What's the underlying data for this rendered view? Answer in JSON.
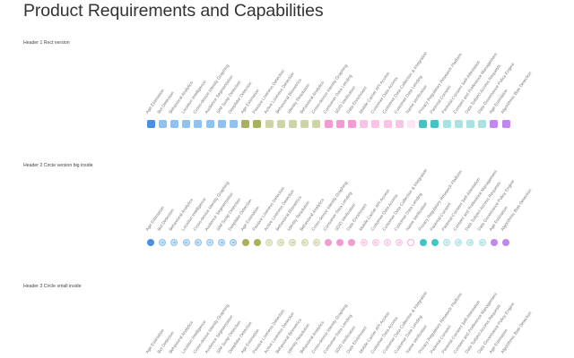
{
  "page": {
    "title": "Product Requirements and Capabilities",
    "headers": [
      "Header 1 Rect version",
      "Header 2 Circle version big inside",
      "Header 3 Circle small inside"
    ]
  },
  "capabilities": [
    {
      "label": "Age Estimation",
      "color": "#4a90e2",
      "style": "filled"
    },
    {
      "label": "Bot Detection",
      "color": "#8fc2ee",
      "style": "ring"
    },
    {
      "label": "Behavioral Analytics",
      "color": "#8fc2ee",
      "style": "ring"
    },
    {
      "label": "Location Intelligence",
      "color": "#8fc2ee",
      "style": "ring"
    },
    {
      "label": "Cross-device Identity Graphing",
      "color": "#8fc2ee",
      "style": "ring"
    },
    {
      "label": "Audience Segmentation",
      "color": "#8fc2ee",
      "style": "ring"
    },
    {
      "label": "SIM Swap Detection",
      "color": "#8fc2ee",
      "style": "ring"
    },
    {
      "label": "Deepfake Detection",
      "color": "#8fc2ee",
      "style": "ring"
    },
    {
      "label": "Age Estimation",
      "color": "#a9b15c",
      "style": "filled"
    },
    {
      "label": "Passive Liveness Detection",
      "color": "#a9b15c",
      "style": "filled"
    },
    {
      "label": "Active Liveness Detection",
      "color": "#cfd4a8",
      "style": "ring"
    },
    {
      "label": "Behavioral Biometrics",
      "color": "#cfd4a8",
      "style": "ring"
    },
    {
      "label": "Identity Resolution",
      "color": "#cfd4a8",
      "style": "ring"
    },
    {
      "label": "Behavioral Analytics",
      "color": "#cfd4a8",
      "style": "ring"
    },
    {
      "label": "Cross-device Identity Graphing",
      "color": "#cfd4a8",
      "style": "ring"
    },
    {
      "label": "Consumer Data Lending",
      "color": "#f39bd0",
      "style": "filled"
    },
    {
      "label": "SDID Verification",
      "color": "#f39bd0",
      "style": "filled"
    },
    {
      "label": "Data Enrichment",
      "color": "#f39bd0",
      "style": "filled"
    },
    {
      "label": "Mobile Carrier API Access",
      "color": "#f7c5e3",
      "style": "ring"
    },
    {
      "label": "Customer Data Access",
      "color": "#f7c5e3",
      "style": "ring"
    },
    {
      "label": "Customer Data Collection & Integration",
      "color": "#f7c5e3",
      "style": "ring"
    },
    {
      "label": "Customer Data Lending",
      "color": "#f7c5e3",
      "style": "ring"
    },
    {
      "label": "Name Verification",
      "color": "#fce6f3",
      "style": "outline"
    },
    {
      "label": "Privacy Regulatory Research Platform",
      "color": "#40c5c2",
      "style": "filled"
    },
    {
      "label": "Parental Consent",
      "color": "#40c5c2",
      "style": "filled"
    },
    {
      "label": "Parental Consent Self-Attestation",
      "color": "#a8e3e1",
      "style": "ring"
    },
    {
      "label": "Consent and Preference Management",
      "color": "#a8e3e1",
      "style": "ring"
    },
    {
      "label": "Data Subject Access Requests",
      "color": "#a8e3e1",
      "style": "ring"
    },
    {
      "label": "Data Governance Policy Engine",
      "color": "#a8e3e1",
      "style": "ring"
    },
    {
      "label": "Age Estimation",
      "color": "#c087ec",
      "style": "filled"
    },
    {
      "label": "Algorithmic Bias Detection",
      "color": "#c087ec",
      "style": "filled"
    }
  ]
}
